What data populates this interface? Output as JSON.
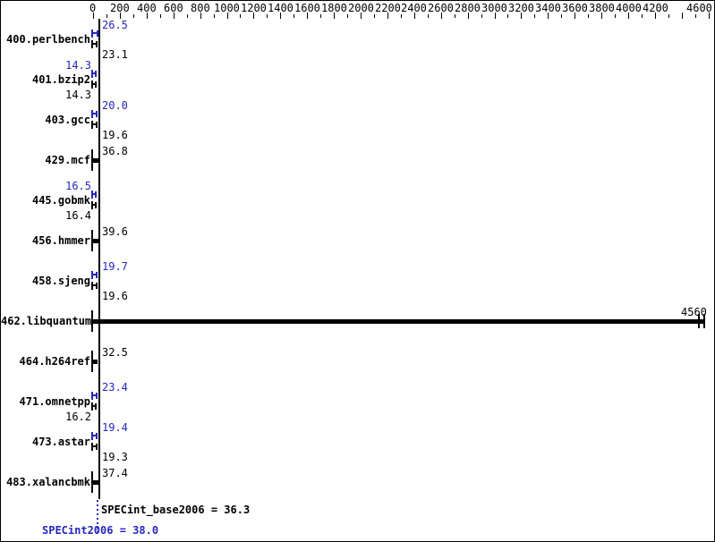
{
  "colors": {
    "peak": "#2626bf",
    "base": "#000000",
    "background": "#ffffff",
    "border": "#000000"
  },
  "chart_data": {
    "type": "bar",
    "orientation": "horizontal",
    "xlim": [
      0,
      4600
    ],
    "grid": false,
    "x_ticks": {
      "minor_step": 100,
      "major_step": 200,
      "labels": [
        {
          "value": 0,
          "text": "0"
        },
        {
          "value": 200,
          "text": "200"
        },
        {
          "value": 400,
          "text": "400"
        },
        {
          "value": 600,
          "text": "600"
        },
        {
          "value": 800,
          "text": "800"
        },
        {
          "value": 1000,
          "text": "1000"
        },
        {
          "value": 1200,
          "text": "1200"
        },
        {
          "value": 1400,
          "text": "1400"
        },
        {
          "value": 1600,
          "text": "1600"
        },
        {
          "value": 1800,
          "text": "1800"
        },
        {
          "value": 2000,
          "text": "2000"
        },
        {
          "value": 2200,
          "text": "2200"
        },
        {
          "value": 2400,
          "text": "2400"
        },
        {
          "value": 2600,
          "text": "2600"
        },
        {
          "value": 2800,
          "text": "2800"
        },
        {
          "value": 3000,
          "text": "3000"
        },
        {
          "value": 3200,
          "text": "3200"
        },
        {
          "value": 3400,
          "text": "3400"
        },
        {
          "value": 3600,
          "text": "3600"
        },
        {
          "value": 3800,
          "text": "3800"
        },
        {
          "value": 4000,
          "text": "4000"
        },
        {
          "value": 4200,
          "text": "4200"
        },
        {
          "value": 4600,
          "text": "4600"
        }
      ]
    },
    "benchmarks": [
      {
        "name": "400.perlbench",
        "peak": {
          "value": 26.5,
          "text": "26.5",
          "side": "right"
        },
        "base": {
          "value": 23.1,
          "text": "23.1",
          "side": "right"
        }
      },
      {
        "name": "401.bzip2",
        "peak": {
          "value": 14.3,
          "text": "14.3",
          "side": "left"
        },
        "base": {
          "value": 14.3,
          "text": "14.3",
          "side": "left"
        }
      },
      {
        "name": "403.gcc",
        "peak": {
          "value": 20.0,
          "text": "20.0",
          "side": "right"
        },
        "base": {
          "value": 19.6,
          "text": "19.6",
          "side": "right"
        }
      },
      {
        "name": "429.mcf",
        "single": {
          "value": 36.8,
          "text": "36.8",
          "side": "right"
        }
      },
      {
        "name": "445.gobmk",
        "peak": {
          "value": 16.5,
          "text": "16.5",
          "side": "left"
        },
        "base": {
          "value": 16.4,
          "text": "16.4",
          "side": "left"
        }
      },
      {
        "name": "456.hmmer",
        "single": {
          "value": 39.6,
          "text": "39.6",
          "side": "right"
        }
      },
      {
        "name": "458.sjeng",
        "peak": {
          "value": 19.7,
          "text": "19.7",
          "side": "right"
        },
        "base": {
          "value": 19.6,
          "text": "19.6",
          "side": "right"
        }
      },
      {
        "name": "462.libquantum",
        "single": {
          "value": 4560,
          "text": "4560",
          "side": "bar_end"
        }
      },
      {
        "name": "464.h264ref",
        "single": {
          "value": 32.5,
          "text": "32.5",
          "side": "right"
        }
      },
      {
        "name": "471.omnetpp",
        "peak": {
          "value": 23.4,
          "text": "23.4",
          "side": "right"
        },
        "base": {
          "value": 16.2,
          "text": "16.2",
          "side": "left"
        }
      },
      {
        "name": "473.astar",
        "peak": {
          "value": 19.4,
          "text": "19.4",
          "side": "right"
        },
        "base": {
          "value": 19.3,
          "text": "19.3",
          "side": "right"
        }
      },
      {
        "name": "483.xalancbmk",
        "single": {
          "value": 37.4,
          "text": "37.4",
          "side": "right"
        }
      }
    ],
    "means": {
      "base": {
        "value": 36.3,
        "text": "SPECint_base2006 = 36.3"
      },
      "peak": {
        "value": 38.0,
        "text": "SPECint2006 = 38.0"
      }
    }
  }
}
